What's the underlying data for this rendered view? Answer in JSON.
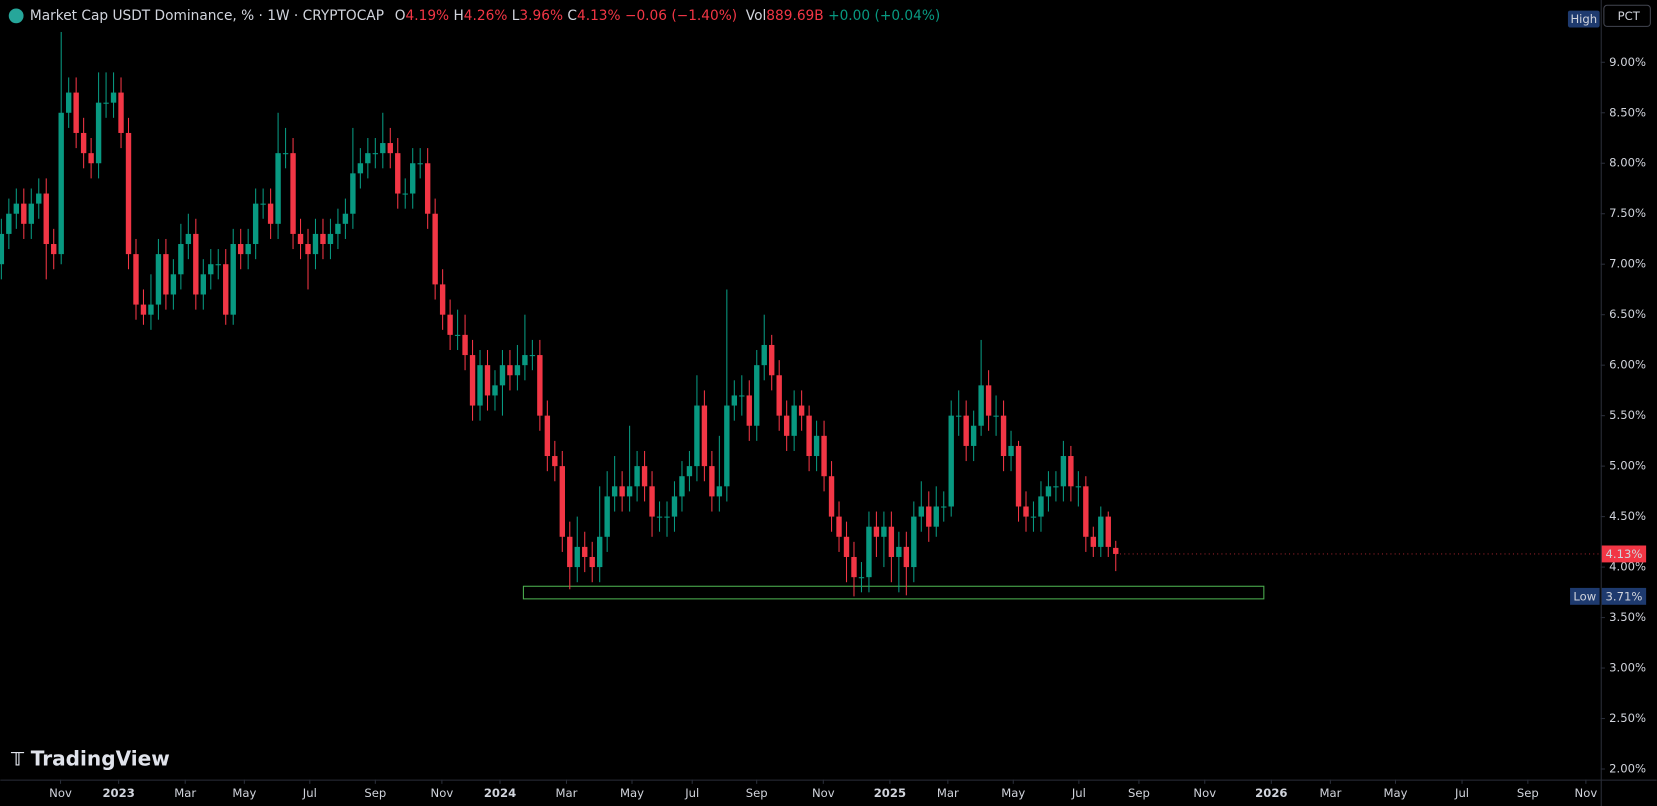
{
  "chart_data": {
    "type": "candlestick",
    "header": {
      "title": "Market Cap USDT Dominance, %",
      "interval": "1W",
      "exchange": "CRYPTOCAP",
      "open_label": "O",
      "open": "4.19%",
      "high_label": "H",
      "high": "4.26%",
      "low_label": "L",
      "low": "3.96%",
      "close_label": "C",
      "close": "4.13%",
      "change": "−0.06 (−1.40%)",
      "volume_label": "Vol",
      "volume": "889.69B",
      "volume_change": "+0.00 (+0.04%)"
    },
    "brand": "TradingView",
    "scale_mode": "PCT",
    "high_tag": "High",
    "last_price_label": {
      "value": 4.13,
      "label": "4.13%"
    },
    "low_label": {
      "tag": "Low",
      "value": 3.71,
      "label": "3.71%"
    },
    "up_color": "#089981",
    "down_color": "#f23645",
    "grid": false,
    "xlim": [
      -0.14,
      213.84
    ],
    "ylim": [
      1.895,
      9.617
    ],
    "x": [
      0,
      1,
      2,
      3,
      4,
      5,
      6,
      7,
      8,
      9,
      10,
      11,
      12,
      13,
      14,
      15,
      16,
      17,
      18,
      19,
      20,
      21,
      22,
      23,
      24,
      25,
      26,
      27,
      28,
      29,
      30,
      31,
      32,
      33,
      34,
      35,
      36,
      37,
      38,
      39,
      40,
      41,
      42,
      43,
      44,
      45,
      46,
      47,
      48,
      49,
      50,
      51,
      52,
      53,
      54,
      55,
      56,
      57,
      58,
      59,
      60,
      61,
      62,
      63,
      64,
      65,
      66,
      67,
      68,
      69,
      70,
      71,
      72,
      73,
      74,
      75,
      76,
      77,
      78,
      79,
      80,
      81,
      82,
      83,
      84,
      85,
      86,
      87,
      88,
      89,
      90,
      91,
      92,
      93,
      94,
      95,
      96,
      97,
      98,
      99,
      100,
      101,
      102,
      103,
      104,
      105,
      106,
      107,
      108,
      109,
      110,
      111,
      112,
      113,
      114,
      115,
      116,
      117,
      118,
      119,
      120,
      121,
      122,
      123,
      124,
      125,
      126,
      127,
      128,
      129,
      130,
      131,
      132,
      133,
      134,
      135,
      136,
      137,
      138,
      139,
      140,
      141,
      142,
      143,
      144,
      145,
      146,
      147,
      148,
      149
    ],
    "open": [
      7.0,
      7.3,
      7.5,
      7.6,
      7.4,
      7.6,
      7.7,
      7.2,
      7.1,
      8.5,
      8.7,
      8.3,
      8.1,
      8.0,
      8.6,
      8.6,
      8.7,
      8.3,
      7.1,
      6.6,
      6.5,
      6.6,
      7.1,
      6.7,
      6.9,
      7.2,
      7.3,
      6.7,
      6.9,
      7.0,
      7.0,
      6.5,
      7.2,
      7.1,
      7.2,
      7.6,
      7.6,
      7.4,
      8.1,
      8.1,
      7.3,
      7.2,
      7.1,
      7.3,
      7.2,
      7.3,
      7.4,
      7.5,
      7.9,
      8.0,
      8.1,
      8.1,
      8.2,
      8.1,
      7.7,
      7.7,
      8.0,
      8.0,
      7.5,
      6.8,
      6.5,
      6.3,
      6.3,
      6.1,
      5.6,
      6.0,
      5.7,
      5.8,
      6.0,
      5.9,
      6.0,
      6.1,
      6.1,
      5.5,
      5.1,
      5.0,
      4.3,
      4.0,
      4.2,
      4.1,
      4.0,
      4.3,
      4.7,
      4.8,
      4.7,
      4.8,
      5.0,
      4.8,
      4.5,
      4.5,
      4.5,
      4.7,
      4.9,
      5.0,
      5.6,
      5.0,
      4.7,
      4.8,
      5.6,
      5.7,
      5.7,
      5.4,
      6.0,
      6.2,
      5.9,
      5.5,
      5.3,
      5.6,
      5.5,
      5.1,
      5.3,
      4.9,
      4.5,
      4.3,
      4.1,
      3.9,
      3.9,
      4.4,
      4.3,
      4.4,
      4.1,
      4.2,
      4.0,
      4.5,
      4.6,
      4.4,
      4.6,
      4.6,
      5.5,
      5.5,
      5.2,
      5.4,
      5.8,
      5.5,
      5.5,
      5.1,
      5.2,
      4.6,
      4.5,
      4.5,
      4.7,
      4.8,
      4.8,
      5.1,
      4.8,
      4.8,
      4.3,
      4.2,
      4.5,
      4.19
    ],
    "high": [
      7.45,
      7.65,
      7.75,
      7.75,
      7.75,
      7.85,
      7.85,
      7.35,
      9.3,
      8.85,
      8.85,
      8.45,
      8.25,
      8.9,
      8.9,
      8.9,
      8.85,
      8.45,
      7.25,
      6.75,
      6.9,
      7.25,
      7.25,
      7.05,
      7.4,
      7.5,
      7.45,
      7.05,
      7.15,
      7.15,
      7.15,
      7.35,
      7.35,
      7.35,
      7.75,
      7.75,
      7.75,
      8.5,
      8.35,
      8.25,
      7.45,
      7.35,
      7.45,
      7.45,
      7.45,
      7.55,
      7.65,
      8.35,
      8.15,
      8.25,
      8.25,
      8.5,
      8.35,
      8.25,
      7.85,
      8.15,
      8.15,
      8.15,
      7.65,
      6.95,
      6.65,
      6.55,
      6.5,
      6.25,
      6.15,
      6.15,
      5.95,
      6.15,
      6.15,
      6.2,
      6.5,
      6.25,
      6.25,
      5.65,
      5.25,
      5.15,
      4.45,
      4.5,
      4.35,
      4.25,
      4.8,
      4.95,
      5.1,
      4.95,
      5.4,
      5.15,
      5.15,
      4.95,
      4.65,
      4.65,
      4.85,
      5.05,
      5.15,
      5.9,
      5.75,
      5.15,
      5.3,
      6.75,
      5.85,
      5.9,
      5.85,
      6.15,
      6.5,
      6.3,
      6.05,
      5.65,
      5.75,
      5.75,
      5.6,
      5.45,
      5.45,
      5.05,
      4.65,
      4.45,
      4.25,
      4.05,
      4.55,
      4.55,
      4.55,
      4.55,
      4.35,
      4.35,
      4.65,
      4.85,
      4.75,
      4.8,
      4.75,
      5.65,
      5.75,
      5.65,
      5.55,
      6.25,
      5.95,
      5.7,
      5.65,
      5.35,
      5.25,
      4.75,
      4.65,
      4.85,
      4.95,
      4.95,
      5.25,
      5.2,
      4.95,
      4.9,
      4.4,
      4.6,
      4.55,
      4.26
    ],
    "low": [
      6.85,
      7.15,
      7.35,
      7.25,
      7.25,
      7.45,
      6.85,
      6.95,
      7.0,
      8.35,
      8.15,
      7.95,
      7.85,
      7.85,
      8.45,
      8.45,
      8.15,
      6.95,
      6.45,
      6.4,
      6.35,
      6.45,
      6.55,
      6.55,
      6.75,
      7.05,
      6.55,
      6.55,
      6.75,
      6.85,
      6.4,
      6.4,
      6.95,
      6.95,
      7.05,
      7.45,
      7.25,
      7.25,
      7.95,
      7.15,
      7.05,
      6.75,
      6.95,
      7.05,
      7.05,
      7.15,
      7.25,
      7.35,
      7.75,
      7.85,
      7.95,
      7.95,
      7.95,
      7.55,
      7.55,
      7.55,
      7.85,
      7.35,
      6.65,
      6.35,
      6.15,
      6.15,
      5.95,
      5.45,
      5.45,
      5.55,
      5.55,
      5.5,
      5.75,
      5.75,
      5.85,
      5.95,
      5.35,
      4.95,
      4.85,
      4.15,
      3.78,
      3.85,
      3.95,
      3.85,
      3.85,
      4.15,
      4.55,
      4.55,
      4.55,
      4.65,
      4.65,
      4.3,
      4.35,
      4.3,
      4.35,
      4.55,
      4.75,
      4.85,
      4.85,
      4.55,
      4.55,
      4.65,
      5.45,
      5.5,
      5.25,
      5.25,
      5.85,
      5.75,
      5.35,
      5.15,
      5.15,
      5.35,
      4.95,
      4.95,
      4.75,
      4.35,
      4.15,
      3.85,
      3.71,
      3.75,
      3.75,
      4.1,
      4.0,
      3.85,
      3.75,
      3.72,
      3.85,
      4.35,
      4.25,
      4.3,
      4.45,
      4.5,
      5.3,
      5.05,
      5.05,
      5.3,
      5.35,
      5.3,
      4.95,
      4.95,
      4.45,
      4.35,
      4.35,
      4.35,
      4.55,
      4.65,
      4.65,
      4.65,
      4.6,
      4.15,
      4.1,
      4.1,
      4.1,
      3.96
    ],
    "close": [
      7.3,
      7.5,
      7.6,
      7.4,
      7.6,
      7.7,
      7.2,
      7.1,
      8.5,
      8.7,
      8.3,
      8.1,
      8.0,
      8.6,
      8.6,
      8.7,
      8.3,
      7.1,
      6.6,
      6.5,
      6.6,
      7.1,
      6.7,
      6.9,
      7.2,
      7.3,
      6.7,
      6.9,
      7.0,
      7.0,
      6.5,
      7.2,
      7.1,
      7.2,
      7.6,
      7.6,
      7.4,
      8.1,
      8.1,
      7.3,
      7.2,
      7.1,
      7.3,
      7.2,
      7.3,
      7.4,
      7.5,
      7.9,
      8.0,
      8.1,
      8.1,
      8.2,
      8.1,
      7.7,
      7.7,
      8.0,
      8.0,
      7.5,
      6.8,
      6.5,
      6.3,
      6.3,
      6.1,
      5.6,
      6.0,
      5.7,
      5.8,
      6.0,
      5.9,
      6.0,
      6.1,
      6.1,
      5.5,
      5.1,
      5.0,
      4.3,
      4.0,
      4.2,
      4.1,
      4.0,
      4.3,
      4.7,
      4.8,
      4.7,
      4.8,
      5.0,
      4.8,
      4.5,
      4.5,
      4.5,
      4.7,
      4.9,
      5.0,
      5.6,
      5.0,
      4.7,
      4.8,
      5.6,
      5.7,
      5.7,
      5.4,
      6.0,
      6.2,
      5.9,
      5.5,
      5.3,
      5.6,
      5.5,
      5.1,
      5.3,
      4.9,
      4.5,
      4.3,
      4.1,
      3.9,
      3.9,
      4.4,
      4.3,
      4.4,
      4.1,
      4.2,
      4.0,
      4.5,
      4.6,
      4.4,
      4.6,
      4.6,
      5.5,
      5.5,
      5.2,
      5.4,
      5.8,
      5.5,
      5.5,
      5.1,
      5.2,
      4.6,
      4.5,
      4.5,
      4.7,
      4.8,
      4.8,
      5.1,
      4.8,
      4.8,
      4.3,
      4.2,
      4.5,
      4.2,
      4.13
    ],
    "zones": [
      {
        "x": [
          69.8,
          168.8
        ],
        "y": [
          3.685,
          3.81
        ],
        "color": "#4caf50"
      }
    ],
    "yticks": [
      {
        "value": 2.0,
        "label": "2.00%"
      },
      {
        "value": 2.5,
        "label": "2.50%"
      },
      {
        "value": 3.0,
        "label": "3.00%"
      },
      {
        "value": 3.5,
        "label": "3.50%"
      },
      {
        "value": 4.0,
        "label": "4.00%"
      },
      {
        "value": 4.5,
        "label": "4.50%"
      },
      {
        "value": 5.0,
        "label": "5.00%"
      },
      {
        "value": 5.5,
        "label": "5.50%"
      },
      {
        "value": 6.0,
        "label": "6.00%"
      },
      {
        "value": 6.5,
        "label": "6.50%"
      },
      {
        "value": 7.0,
        "label": "7.00%"
      },
      {
        "value": 7.5,
        "label": "7.50%"
      },
      {
        "value": 8.0,
        "label": "8.00%"
      },
      {
        "value": 8.5,
        "label": "8.50%"
      },
      {
        "value": 9.0,
        "label": "9.00%"
      }
    ],
    "xticks": [
      {
        "value": 7.91,
        "label": "Nov"
      },
      {
        "value": 15.68,
        "label": "2023"
      },
      {
        "value": 24.58,
        "label": "Mar"
      },
      {
        "value": 32.49,
        "label": "May"
      },
      {
        "value": 41.24,
        "label": "Jul"
      },
      {
        "value": 50.0,
        "label": "Sep"
      },
      {
        "value": 58.9,
        "label": "Nov"
      },
      {
        "value": 66.67,
        "label": "2024"
      },
      {
        "value": 75.56,
        "label": "Mar"
      },
      {
        "value": 84.32,
        "label": "May"
      },
      {
        "value": 92.37,
        "label": "Jul"
      },
      {
        "value": 100.99,
        "label": "Sep"
      },
      {
        "value": 109.9,
        "label": "Nov"
      },
      {
        "value": 118.8,
        "label": "2025"
      },
      {
        "value": 126.55,
        "label": "Mar"
      },
      {
        "value": 135.3,
        "label": "May"
      },
      {
        "value": 144.07,
        "label": "Jul"
      },
      {
        "value": 152.1,
        "label": "Sep"
      },
      {
        "value": 160.9,
        "label": "Nov"
      },
      {
        "value": 169.8,
        "label": "2026"
      },
      {
        "value": 177.7,
        "label": "Mar"
      },
      {
        "value": 186.4,
        "label": "May"
      },
      {
        "value": 195.3,
        "label": "Jul"
      },
      {
        "value": 204.1,
        "label": "Sep"
      },
      {
        "value": 211.86,
        "label": "Nov"
      }
    ]
  }
}
